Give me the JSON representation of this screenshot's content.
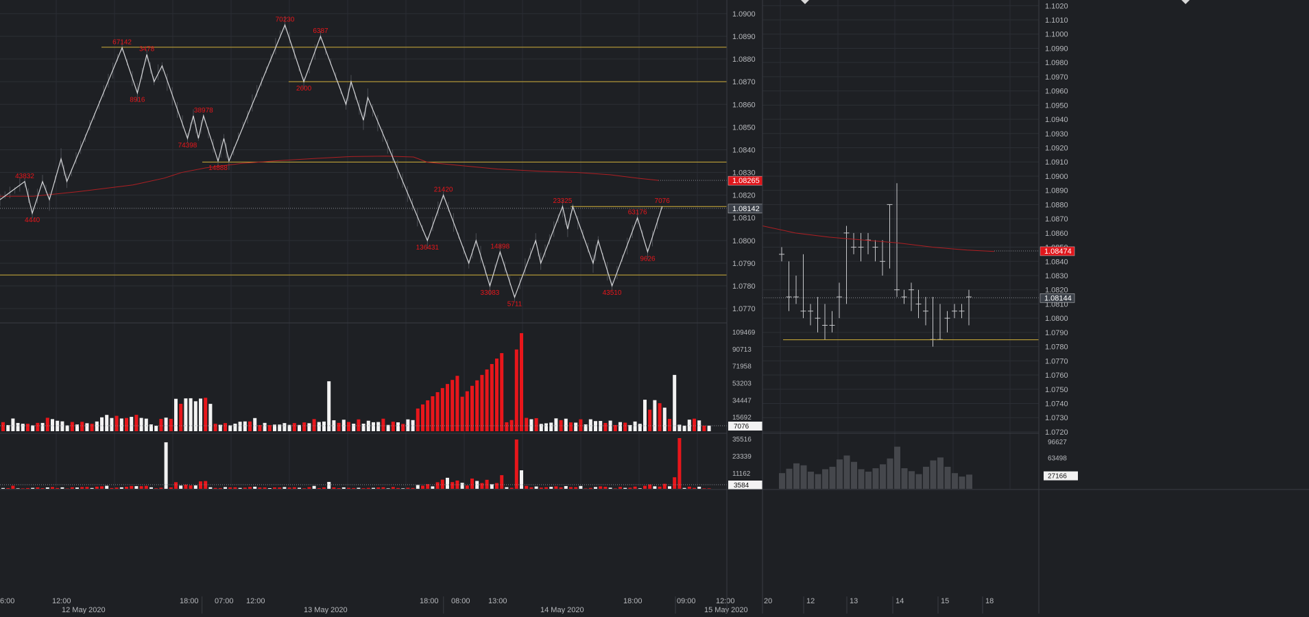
{
  "left_chart": {
    "price_axis": {
      "labels": [
        "1.0900",
        "1.0890",
        "1.0880",
        "1.0870",
        "1.0860",
        "1.0850",
        "1.0840",
        "1.0830",
        "1.0820",
        "1.0810",
        "1.0800",
        "1.0790",
        "1.0780",
        "1.0770"
      ],
      "ylim": [
        1.0764,
        1.0906
      ]
    },
    "price_tags": [
      {
        "label": "1.08265",
        "value": 1.08265,
        "color": "#e0161b"
      },
      {
        "label": "1.08142",
        "value": 1.08142,
        "color": "#3b4048"
      }
    ],
    "horizontal_levels": [
      {
        "value": 1.08852,
        "from_x": 0.1396,
        "color": "#d4b23a"
      },
      {
        "value": 1.087,
        "from_x": 0.3971,
        "color": "#d4b23a"
      },
      {
        "value": 1.08346,
        "from_x": 0.2783,
        "color": "#d4b23a"
      },
      {
        "value": 1.0815,
        "from_x": 0.7851,
        "color": "#d4b23a"
      },
      {
        "value": 1.07848,
        "from_x": 0.0,
        "color": "#d4b23a"
      }
    ],
    "zigzag": {
      "points": [
        {
          "x": 0.0,
          "p": 1.0818
        },
        {
          "x": 0.034,
          "p": 1.0826,
          "label": "43832",
          "pos": "above"
        },
        {
          "x": 0.0444,
          "p": 1.0812,
          "label": "4440",
          "pos": "below"
        },
        {
          "x": 0.0585,
          "p": 1.0826
        },
        {
          "x": 0.068,
          "p": 1.0818
        },
        {
          "x": 0.084,
          "p": 1.0836
        },
        {
          "x": 0.092,
          "p": 1.0826
        },
        {
          "x": 0.168,
          "p": 1.0885,
          "label": "67142",
          "pos": "above"
        },
        {
          "x": 0.189,
          "p": 1.0865,
          "label": "8916",
          "pos": "below"
        },
        {
          "x": 0.202,
          "p": 1.0882,
          "label": "3478",
          "pos": "above"
        },
        {
          "x": 0.212,
          "p": 1.087
        },
        {
          "x": 0.223,
          "p": 1.0877
        },
        {
          "x": 0.258,
          "p": 1.0845,
          "label": "74398",
          "pos": "below"
        },
        {
          "x": 0.266,
          "p": 1.0855
        },
        {
          "x": 0.273,
          "p": 1.0845
        },
        {
          "x": 0.28,
          "p": 1.0855,
          "label": "38978",
          "pos": "above"
        },
        {
          "x": 0.3,
          "p": 1.0835,
          "label": "14888",
          "pos": "below"
        },
        {
          "x": 0.308,
          "p": 1.0845
        },
        {
          "x": 0.315,
          "p": 1.0835
        },
        {
          "x": 0.392,
          "p": 1.0895,
          "label": "70230",
          "pos": "above"
        },
        {
          "x": 0.418,
          "p": 1.087,
          "label": "2600",
          "pos": "below"
        },
        {
          "x": 0.441,
          "p": 1.089,
          "label": "6387",
          "pos": "above"
        },
        {
          "x": 0.476,
          "p": 1.086
        },
        {
          "x": 0.483,
          "p": 1.087
        },
        {
          "x": 0.5,
          "p": 1.0853
        },
        {
          "x": 0.506,
          "p": 1.0863
        },
        {
          "x": 0.588,
          "p": 1.08,
          "label": "136431",
          "pos": "below"
        },
        {
          "x": 0.61,
          "p": 1.082,
          "label": "21420",
          "pos": "above"
        },
        {
          "x": 0.645,
          "p": 1.079
        },
        {
          "x": 0.655,
          "p": 1.08
        },
        {
          "x": 0.674,
          "p": 1.078,
          "label": "33083",
          "pos": "below"
        },
        {
          "x": 0.688,
          "p": 1.0795,
          "label": "14898",
          "pos": "above"
        },
        {
          "x": 0.708,
          "p": 1.0775,
          "label": "5711",
          "pos": "below"
        },
        {
          "x": 0.737,
          "p": 1.08
        },
        {
          "x": 0.744,
          "p": 1.079
        },
        {
          "x": 0.774,
          "p": 1.0815,
          "label": "23325",
          "pos": "above"
        },
        {
          "x": 0.781,
          "p": 1.0805
        },
        {
          "x": 0.788,
          "p": 1.0815
        },
        {
          "x": 0.816,
          "p": 1.079
        },
        {
          "x": 0.823,
          "p": 1.08
        },
        {
          "x": 0.842,
          "p": 1.078,
          "label": "43510",
          "pos": "below"
        },
        {
          "x": 0.877,
          "p": 1.081,
          "label": "63176",
          "pos": "above"
        },
        {
          "x": 0.891,
          "p": 1.0795,
          "label": "9626",
          "pos": "below"
        },
        {
          "x": 0.911,
          "p": 1.0815,
          "label": "7076",
          "pos": "above"
        }
      ]
    },
    "moving_average": [
      {
        "x": 0.0,
        "p": 1.08195
      },
      {
        "x": 0.046,
        "p": 1.08195
      },
      {
        "x": 0.107,
        "p": 1.08215
      },
      {
        "x": 0.183,
        "p": 1.08245
      },
      {
        "x": 0.226,
        "p": 1.08275
      },
      {
        "x": 0.25,
        "p": 1.083
      },
      {
        "x": 0.283,
        "p": 1.0832
      },
      {
        "x": 0.333,
        "p": 1.0834
      },
      {
        "x": 0.383,
        "p": 1.08352
      },
      {
        "x": 0.436,
        "p": 1.08362
      },
      {
        "x": 0.483,
        "p": 1.0837
      },
      {
        "x": 0.531,
        "p": 1.08372
      },
      {
        "x": 0.569,
        "p": 1.08368
      },
      {
        "x": 0.588,
        "p": 1.08345
      },
      {
        "x": 0.635,
        "p": 1.0833
      },
      {
        "x": 0.685,
        "p": 1.08315
      },
      {
        "x": 0.744,
        "p": 1.08305
      },
      {
        "x": 0.793,
        "p": 1.083
      },
      {
        "x": 0.839,
        "p": 1.0829
      },
      {
        "x": 0.877,
        "p": 1.08275
      },
      {
        "x": 0.906,
        "p": 1.08265
      }
    ],
    "volume_axis": {
      "labels": [
        "109469",
        "90713",
        "71958",
        "53203",
        "34447",
        "15692"
      ],
      "max": 109469
    },
    "volume_tag": "7076",
    "delta_axis": {
      "labels": [
        "35516",
        "23339",
        "11162"
      ],
      "max": 35516
    },
    "delta_tag": "3584",
    "time_labels": [
      "6:00",
      "12:00",
      "18:00",
      "07:00",
      "12:00",
      "18:00",
      "08:00",
      "13:00",
      "18:00",
      "09:00",
      "12:00"
    ],
    "date_labels": [
      "12 May 2020",
      "13 May 2020",
      "14 May 2020",
      "15 May 2020"
    ]
  },
  "right_chart": {
    "price_axis": {
      "labels": [
        "1.1020",
        "1.1010",
        "1.1000",
        "1.0990",
        "1.0980",
        "1.0970",
        "1.0960",
        "1.0950",
        "1.0940",
        "1.0930",
        "1.0920",
        "1.0910",
        "1.0900",
        "1.0890",
        "1.0880",
        "1.0870",
        "1.0860",
        "1.0850",
        "1.0840",
        "1.0830",
        "1.0820",
        "1.0810",
        "1.0800",
        "1.0790",
        "1.0780",
        "1.0770",
        "1.0760",
        "1.0750",
        "1.0740",
        "1.0730",
        "1.0720"
      ],
      "ylim": [
        1.0719,
        1.1024
      ]
    },
    "price_tags": [
      {
        "label": "1.08474",
        "value": 1.08474,
        "color": "#e0161b"
      },
      {
        "label": "1.08144",
        "value": 1.08144,
        "color": "#3b4048"
      }
    ],
    "level": {
      "value": 1.07848
    },
    "volume_axis": {
      "labels": [
        "96627",
        "63498",
        "27166"
      ],
      "max": 96627
    },
    "volume_tag": "27166",
    "date_labels": [
      "20",
      "12",
      "13",
      "14",
      "15",
      "18"
    ]
  }
}
